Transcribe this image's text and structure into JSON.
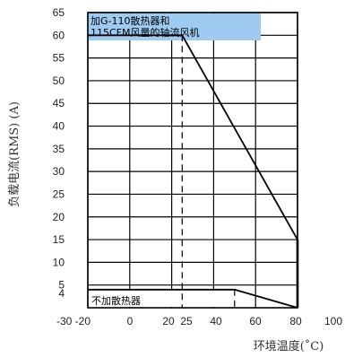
{
  "chart_data": {
    "type": "line",
    "xlabel": "环境温度(˚C)",
    "ylabel": "负载电流(RMS) (A)",
    "x_ticks": [
      {
        "value": -20,
        "label": "-30 -20"
      },
      {
        "value": 0,
        "label": "0"
      },
      {
        "value": 20,
        "label": "20"
      },
      {
        "value": 25,
        "label": "25"
      },
      {
        "value": 40,
        "label": "40"
      },
      {
        "value": 60,
        "label": "60"
      },
      {
        "value": 80,
        "label": "80"
      },
      {
        "value": 100,
        "label": "100"
      }
    ],
    "x_grid": [
      -20,
      0,
      20,
      40,
      60,
      80
    ],
    "y_ticks": [
      4,
      5,
      10,
      15,
      20,
      25,
      30,
      35,
      40,
      45,
      50,
      55,
      60,
      65
    ],
    "y_grid": [
      5,
      10,
      15,
      20,
      25,
      30,
      35,
      40,
      45,
      50,
      55,
      60,
      65
    ],
    "xlim": [
      -20,
      80
    ],
    "ylim": [
      0,
      65
    ],
    "grid": true,
    "legend": "none",
    "reference_lines": [
      {
        "name": "25C",
        "x": 25,
        "style": "dashed"
      },
      {
        "name": "50C",
        "x": 50,
        "style": "dashed"
      }
    ],
    "series": [
      {
        "x": [
          -20,
          25,
          80,
          80
        ],
        "y": [
          60,
          60,
          15,
          4
        ],
        "color": "#000000"
      },
      {
        "x": [
          -20,
          50,
          80
        ],
        "y": [
          4,
          4,
          0
        ],
        "color": "#000000"
      }
    ],
    "annotations": [
      {
        "name": "heatsink",
        "text_lines": [
          "加G-110散热器和",
          "115CFM风量的轴流风机"
        ],
        "background": "#9ecbf2"
      },
      {
        "name": "no-heatsink",
        "text": "不加散热器"
      }
    ]
  }
}
